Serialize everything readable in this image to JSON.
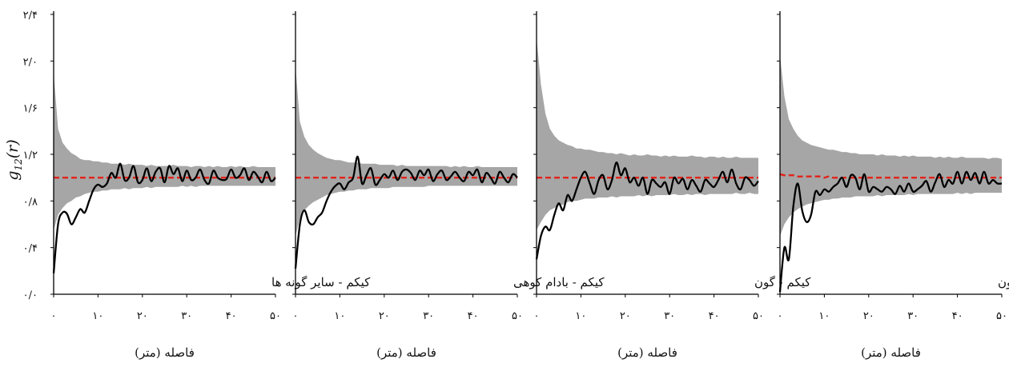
{
  "figure": {
    "ylabel_main": "g",
    "ylabel_sub": "12",
    "ylabel_arg": "(r)",
    "yticks": [
      "۰/۰",
      "۰/۴",
      "۰/۸",
      "۱/۲",
      "۱/۶",
      "۲/۰",
      "۲/۴"
    ],
    "xticks": [
      "۰",
      "۱۰",
      "۲۰",
      "۳۰",
      "۴۰",
      "۵۰"
    ],
    "xlabel": "فاصله (متر)"
  },
  "colors": {
    "envelope": "#a6a6a6",
    "observed": "#000000",
    "expected": "#e2231a",
    "axis": "#000000"
  },
  "chart_data": [
    {
      "type": "line",
      "label": "کیکم - سایر گونه ها",
      "xlabel": "فاصله (متر)",
      "ylabel": "g12(r)",
      "xlim": [
        0,
        50
      ],
      "ylim": [
        0,
        2.4
      ],
      "x": [
        0,
        1,
        2,
        3,
        4,
        5,
        6,
        7,
        8,
        9,
        10,
        11,
        12,
        13,
        14,
        15,
        16,
        17,
        18,
        19,
        20,
        21,
        22,
        23,
        24,
        25,
        26,
        27,
        28,
        29,
        30,
        31,
        32,
        33,
        34,
        35,
        36,
        37,
        38,
        39,
        40,
        41,
        42,
        43,
        44,
        45,
        46,
        47,
        48,
        49,
        50
      ],
      "series": [
        {
          "name": "observed",
          "values": [
            0.18,
            0.6,
            0.7,
            0.69,
            0.6,
            0.66,
            0.73,
            0.7,
            0.8,
            0.9,
            0.94,
            0.92,
            0.95,
            1.04,
            1.0,
            1.12,
            0.98,
            1.0,
            1.1,
            0.96,
            0.98,
            1.08,
            0.97,
            1.05,
            1.08,
            0.96,
            1.1,
            1.03,
            1.08,
            0.97,
            1.06,
            0.98,
            1.0,
            1.07,
            0.98,
            0.95,
            1.06,
            1.0,
            0.98,
            0.99,
            1.07,
            1.0,
            1.02,
            1.08,
            0.98,
            1.05,
            1.01,
            0.96,
            1.05,
            0.97,
            1.0
          ]
        },
        {
          "name": "expected",
          "values": [
            1.0,
            1.0,
            1.0,
            1.0,
            1.0,
            1.0,
            1.0,
            1.0,
            1.0,
            1.0,
            1.0,
            1.0,
            1.0,
            1.0,
            1.0,
            1.0,
            1.0,
            1.0,
            1.0,
            1.0,
            1.0,
            1.0,
            1.0,
            1.0,
            1.0,
            1.0,
            1.0,
            1.0,
            1.0,
            1.0,
            1.0,
            1.0,
            1.0,
            1.0,
            1.0,
            1.0,
            1.0,
            1.0,
            1.0,
            1.0,
            1.0,
            1.0,
            1.0,
            1.0,
            1.0,
            1.0,
            1.0,
            1.0,
            1.0,
            1.0,
            1.0
          ]
        },
        {
          "name": "envelope_upper",
          "values": [
            1.9,
            1.42,
            1.3,
            1.25,
            1.21,
            1.19,
            1.16,
            1.15,
            1.15,
            1.14,
            1.14,
            1.13,
            1.13,
            1.12,
            1.12,
            1.12,
            1.11,
            1.12,
            1.11,
            1.11,
            1.11,
            1.1,
            1.11,
            1.1,
            1.1,
            1.1,
            1.1,
            1.11,
            1.1,
            1.1,
            1.1,
            1.09,
            1.1,
            1.1,
            1.09,
            1.1,
            1.09,
            1.1,
            1.09,
            1.09,
            1.1,
            1.09,
            1.1,
            1.09,
            1.09,
            1.1,
            1.09,
            1.09,
            1.09,
            1.09,
            1.09
          ]
        },
        {
          "name": "envelope_lower",
          "values": [
            0.55,
            0.68,
            0.74,
            0.78,
            0.8,
            0.83,
            0.84,
            0.86,
            0.87,
            0.88,
            0.88,
            0.89,
            0.89,
            0.9,
            0.9,
            0.9,
            0.91,
            0.9,
            0.91,
            0.91,
            0.91,
            0.92,
            0.91,
            0.92,
            0.92,
            0.92,
            0.92,
            0.92,
            0.92,
            0.93,
            0.92,
            0.93,
            0.92,
            0.93,
            0.93,
            0.93,
            0.93,
            0.93,
            0.93,
            0.93,
            0.93,
            0.93,
            0.93,
            0.93,
            0.93,
            0.93,
            0.93,
            0.93,
            0.93,
            0.93,
            0.93
          ]
        }
      ]
    },
    {
      "type": "line",
      "label": "کیکم - بادام کوهی",
      "xlabel": "فاصله (متر)",
      "ylabel": "g12(r)",
      "xlim": [
        0,
        50
      ],
      "ylim": [
        0,
        2.4
      ],
      "x": [
        0,
        1,
        2,
        3,
        4,
        5,
        6,
        7,
        8,
        9,
        10,
        11,
        12,
        13,
        14,
        15,
        16,
        17,
        18,
        19,
        20,
        21,
        22,
        23,
        24,
        25,
        26,
        27,
        28,
        29,
        30,
        31,
        32,
        33,
        34,
        35,
        36,
        37,
        38,
        39,
        40,
        41,
        42,
        43,
        44,
        45,
        46,
        47,
        48,
        49,
        50
      ],
      "series": [
        {
          "name": "observed",
          "values": [
            0.22,
            0.6,
            0.72,
            0.62,
            0.6,
            0.66,
            0.7,
            0.8,
            0.88,
            0.93,
            0.95,
            0.9,
            0.96,
            1.0,
            1.18,
            0.95,
            1.02,
            1.08,
            0.94,
            0.98,
            1.03,
            1.0,
            1.06,
            0.98,
            1.05,
            1.07,
            1.04,
            0.98,
            1.06,
            1.02,
            1.07,
            0.97,
            1.03,
            1.06,
            0.98,
            1.01,
            1.05,
            1.0,
            0.97,
            1.05,
            1.02,
            1.07,
            0.96,
            1.04,
            1.0,
            0.95,
            1.05,
            1.0,
            0.96,
            1.03,
            1.0
          ]
        },
        {
          "name": "expected",
          "values": [
            1.0,
            1.0,
            1.0,
            1.0,
            1.0,
            1.0,
            1.0,
            1.0,
            1.0,
            1.0,
            1.0,
            1.0,
            1.0,
            1.0,
            1.0,
            1.0,
            1.0,
            1.0,
            1.0,
            1.0,
            1.0,
            1.0,
            1.0,
            1.0,
            1.0,
            1.0,
            1.0,
            1.0,
            1.0,
            1.0,
            1.0,
            1.0,
            1.0,
            1.0,
            1.0,
            1.0,
            1.0,
            1.0,
            1.0,
            1.0,
            1.0,
            1.0,
            1.0,
            1.0,
            1.0,
            1.0,
            1.0,
            1.0,
            1.0,
            1.0,
            1.0
          ]
        },
        {
          "name": "envelope_upper",
          "values": [
            1.95,
            1.48,
            1.35,
            1.28,
            1.24,
            1.21,
            1.19,
            1.17,
            1.16,
            1.15,
            1.15,
            1.14,
            1.13,
            1.13,
            1.13,
            1.12,
            1.12,
            1.12,
            1.12,
            1.11,
            1.11,
            1.11,
            1.11,
            1.1,
            1.11,
            1.1,
            1.1,
            1.1,
            1.1,
            1.1,
            1.1,
            1.1,
            1.1,
            1.1,
            1.1,
            1.09,
            1.1,
            1.09,
            1.1,
            1.09,
            1.09,
            1.1,
            1.09,
            1.09,
            1.09,
            1.09,
            1.09,
            1.09,
            1.09,
            1.09,
            1.09
          ]
        },
        {
          "name": "envelope_lower",
          "values": [
            0.5,
            0.65,
            0.72,
            0.76,
            0.79,
            0.81,
            0.83,
            0.85,
            0.86,
            0.87,
            0.88,
            0.88,
            0.89,
            0.89,
            0.9,
            0.9,
            0.9,
            0.91,
            0.91,
            0.91,
            0.91,
            0.91,
            0.92,
            0.92,
            0.92,
            0.92,
            0.92,
            0.92,
            0.92,
            0.92,
            0.93,
            0.93,
            0.93,
            0.93,
            0.93,
            0.93,
            0.93,
            0.93,
            0.93,
            0.93,
            0.93,
            0.93,
            0.93,
            0.93,
            0.93,
            0.93,
            0.93,
            0.93,
            0.93,
            0.93,
            0.93
          ]
        }
      ]
    },
    {
      "type": "line",
      "label": "کیکم - گون",
      "xlabel": "فاصله (متر)",
      "ylabel": "g12(r)",
      "xlim": [
        0,
        50
      ],
      "ylim": [
        0,
        2.4
      ],
      "x": [
        0,
        1,
        2,
        3,
        4,
        5,
        6,
        7,
        8,
        9,
        10,
        11,
        12,
        13,
        14,
        15,
        16,
        17,
        18,
        19,
        20,
        21,
        22,
        23,
        24,
        25,
        26,
        27,
        28,
        29,
        30,
        31,
        32,
        33,
        34,
        35,
        36,
        37,
        38,
        39,
        40,
        41,
        42,
        43,
        44,
        45,
        46,
        47,
        48,
        49,
        50
      ],
      "series": [
        {
          "name": "observed",
          "values": [
            0.3,
            0.5,
            0.58,
            0.55,
            0.68,
            0.78,
            0.72,
            0.85,
            0.8,
            0.9,
            1.0,
            1.05,
            0.95,
            0.86,
            0.98,
            1.02,
            0.9,
            0.98,
            1.13,
            1.02,
            1.08,
            0.96,
            1.0,
            0.93,
            1.0,
            0.86,
            0.98,
            0.95,
            0.92,
            0.96,
            0.86,
            1.0,
            0.95,
            0.99,
            0.9,
            0.98,
            0.93,
            0.88,
            0.98,
            0.95,
            0.92,
            0.98,
            1.05,
            0.96,
            1.07,
            0.95,
            0.9,
            1.0,
            0.98,
            0.93,
            0.97
          ]
        },
        {
          "name": "expected",
          "values": [
            1.0,
            1.0,
            1.0,
            1.0,
            1.0,
            1.0,
            1.0,
            1.0,
            1.0,
            1.0,
            1.0,
            1.0,
            1.0,
            1.0,
            1.0,
            1.0,
            1.0,
            1.0,
            1.0,
            1.0,
            1.0,
            1.0,
            1.0,
            1.0,
            1.0,
            1.0,
            1.0,
            1.0,
            1.0,
            1.0,
            1.0,
            1.0,
            1.0,
            1.0,
            1.0,
            1.0,
            1.0,
            1.0,
            1.0,
            1.0,
            1.0,
            1.0,
            1.0,
            1.0,
            1.0,
            1.0,
            1.0,
            1.0,
            1.0,
            1.0,
            1.0
          ]
        },
        {
          "name": "envelope_upper",
          "values": [
            2.2,
            1.8,
            1.55,
            1.42,
            1.36,
            1.32,
            1.3,
            1.28,
            1.27,
            1.25,
            1.25,
            1.24,
            1.24,
            1.23,
            1.22,
            1.22,
            1.21,
            1.21,
            1.2,
            1.21,
            1.2,
            1.19,
            1.2,
            1.19,
            1.19,
            1.2,
            1.19,
            1.19,
            1.18,
            1.19,
            1.18,
            1.19,
            1.18,
            1.18,
            1.18,
            1.19,
            1.18,
            1.18,
            1.17,
            1.18,
            1.18,
            1.17,
            1.18,
            1.17,
            1.17,
            1.18,
            1.17,
            1.17,
            1.17,
            1.17,
            1.17
          ]
        },
        {
          "name": "envelope_lower",
          "values": [
            0.55,
            0.62,
            0.68,
            0.72,
            0.74,
            0.76,
            0.77,
            0.79,
            0.8,
            0.8,
            0.81,
            0.82,
            0.82,
            0.82,
            0.83,
            0.83,
            0.83,
            0.84,
            0.83,
            0.84,
            0.84,
            0.84,
            0.84,
            0.85,
            0.84,
            0.85,
            0.84,
            0.85,
            0.85,
            0.85,
            0.85,
            0.86,
            0.85,
            0.85,
            0.86,
            0.85,
            0.86,
            0.86,
            0.85,
            0.86,
            0.86,
            0.86,
            0.86,
            0.86,
            0.86,
            0.87,
            0.86,
            0.86,
            0.87,
            0.86,
            0.86
          ]
        }
      ]
    },
    {
      "type": "line",
      "label": "بادام کوهی- گون",
      "xlabel": "فاصله (متر)",
      "ylabel": "g12(r)",
      "xlim": [
        0,
        50
      ],
      "ylim": [
        0,
        2.4
      ],
      "x": [
        0,
        1,
        2,
        3,
        4,
        5,
        6,
        7,
        8,
        9,
        10,
        11,
        12,
        13,
        14,
        15,
        16,
        17,
        18,
        19,
        20,
        21,
        22,
        23,
        24,
        25,
        26,
        27,
        28,
        29,
        30,
        31,
        32,
        33,
        34,
        35,
        36,
        37,
        38,
        39,
        40,
        41,
        42,
        43,
        44,
        45,
        46,
        47,
        48,
        49,
        50
      ],
      "series": [
        {
          "name": "observed",
          "values": [
            0.02,
            0.4,
            0.3,
            0.75,
            0.95,
            0.72,
            0.62,
            0.68,
            0.88,
            0.85,
            0.9,
            0.88,
            0.92,
            0.95,
            1.0,
            0.92,
            1.02,
            1.0,
            0.9,
            1.03,
            0.88,
            0.92,
            0.9,
            0.88,
            0.92,
            0.9,
            0.86,
            0.93,
            0.88,
            0.95,
            0.88,
            0.9,
            0.93,
            0.97,
            0.88,
            0.96,
            1.03,
            0.92,
            0.98,
            0.95,
            1.05,
            0.95,
            1.05,
            0.98,
            1.04,
            0.95,
            1.05,
            0.95,
            0.98,
            0.95,
            0.95
          ]
        },
        {
          "name": "expected",
          "values": [
            1.03,
            1.02,
            1.02,
            1.02,
            1.01,
            1.01,
            1.01,
            1.01,
            1.01,
            1.01,
            1.0,
            1.01,
            1.0,
            1.0,
            1.0,
            1.0,
            1.0,
            1.0,
            1.0,
            1.0,
            1.0,
            1.0,
            1.0,
            1.0,
            1.0,
            1.0,
            1.0,
            1.0,
            1.0,
            1.0,
            1.0,
            1.0,
            1.0,
            1.0,
            1.0,
            1.0,
            1.0,
            1.0,
            1.0,
            1.0,
            1.0,
            1.0,
            1.0,
            1.0,
            1.0,
            1.0,
            1.0,
            1.0,
            1.0,
            1.0,
            1.0
          ]
        },
        {
          "name": "envelope_upper",
          "values": [
            2.05,
            1.7,
            1.5,
            1.42,
            1.36,
            1.32,
            1.3,
            1.28,
            1.27,
            1.26,
            1.25,
            1.24,
            1.24,
            1.23,
            1.22,
            1.22,
            1.21,
            1.21,
            1.2,
            1.2,
            1.2,
            1.2,
            1.19,
            1.2,
            1.19,
            1.19,
            1.19,
            1.18,
            1.19,
            1.18,
            1.19,
            1.18,
            1.18,
            1.18,
            1.18,
            1.17,
            1.18,
            1.17,
            1.18,
            1.17,
            1.17,
            1.18,
            1.17,
            1.17,
            1.17,
            1.17,
            1.17,
            1.16,
            1.17,
            1.17,
            1.16
          ]
        },
        {
          "name": "envelope_lower",
          "values": [
            0.5,
            0.6,
            0.66,
            0.7,
            0.73,
            0.75,
            0.77,
            0.78,
            0.79,
            0.8,
            0.81,
            0.81,
            0.82,
            0.82,
            0.83,
            0.83,
            0.83,
            0.84,
            0.84,
            0.84,
            0.84,
            0.84,
            0.85,
            0.84,
            0.85,
            0.85,
            0.85,
            0.85,
            0.85,
            0.86,
            0.85,
            0.86,
            0.86,
            0.86,
            0.86,
            0.86,
            0.86,
            0.86,
            0.86,
            0.86,
            0.87,
            0.86,
            0.87,
            0.86,
            0.87,
            0.87,
            0.87,
            0.87,
            0.87,
            0.87,
            0.87
          ]
        }
      ]
    }
  ]
}
